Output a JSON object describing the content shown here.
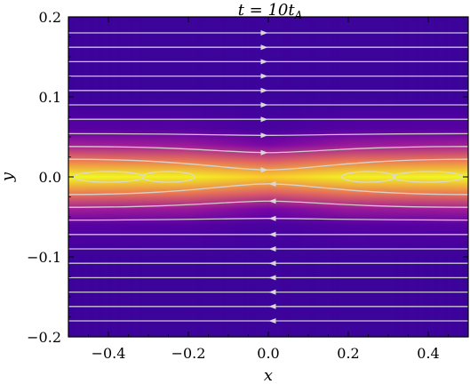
{
  "chart_data": {
    "type": "heatmap",
    "title": "t = 10t_A",
    "title_parts": {
      "main": "t = 10t",
      "sub": "A"
    },
    "xlabel": "x",
    "ylabel": "y",
    "xlim": [
      -0.5,
      0.5
    ],
    "ylim": [
      -0.2,
      0.2
    ],
    "x_ticks": [
      -0.4,
      -0.2,
      0.0,
      0.2,
      0.4
    ],
    "x_tick_labels": [
      "−0.4",
      "−0.2",
      "0.0",
      "0.2",
      "0.4"
    ],
    "y_ticks": [
      -0.2,
      -0.1,
      0.0,
      0.1,
      0.2
    ],
    "y_tick_labels": [
      "−0.2",
      "−0.1",
      "0.0",
      "0.1",
      "0.2"
    ],
    "colormap": "plasma",
    "field_profile": {
      "description_free": true,
      "y": [
        -0.2,
        -0.1,
        -0.06,
        -0.04,
        -0.02,
        0.0,
        0.02,
        0.04,
        0.06,
        0.1,
        0.2
      ],
      "intensity_edge": [
        0.12,
        0.12,
        0.2,
        0.45,
        0.8,
        1.0,
        0.8,
        0.45,
        0.2,
        0.12,
        0.12
      ],
      "intensity_center": [
        0.12,
        0.12,
        0.15,
        0.3,
        0.7,
        0.95,
        0.7,
        0.3,
        0.15,
        0.12,
        0.12
      ]
    },
    "streamlines": {
      "color": "#d9d9d9",
      "y_levels": [
        0.18,
        0.162,
        0.144,
        0.126,
        0.108,
        0.09,
        0.072,
        0.054,
        0.038,
        0.022,
        -0.022,
        -0.038,
        -0.054,
        -0.072,
        -0.09,
        -0.108,
        -0.126,
        -0.144,
        -0.162,
        -0.18
      ],
      "upper_direction": "right",
      "lower_direction": "left",
      "closed_loops_x": [
        -0.4,
        -0.25,
        0.25,
        0.4
      ]
    },
    "grid": false
  }
}
